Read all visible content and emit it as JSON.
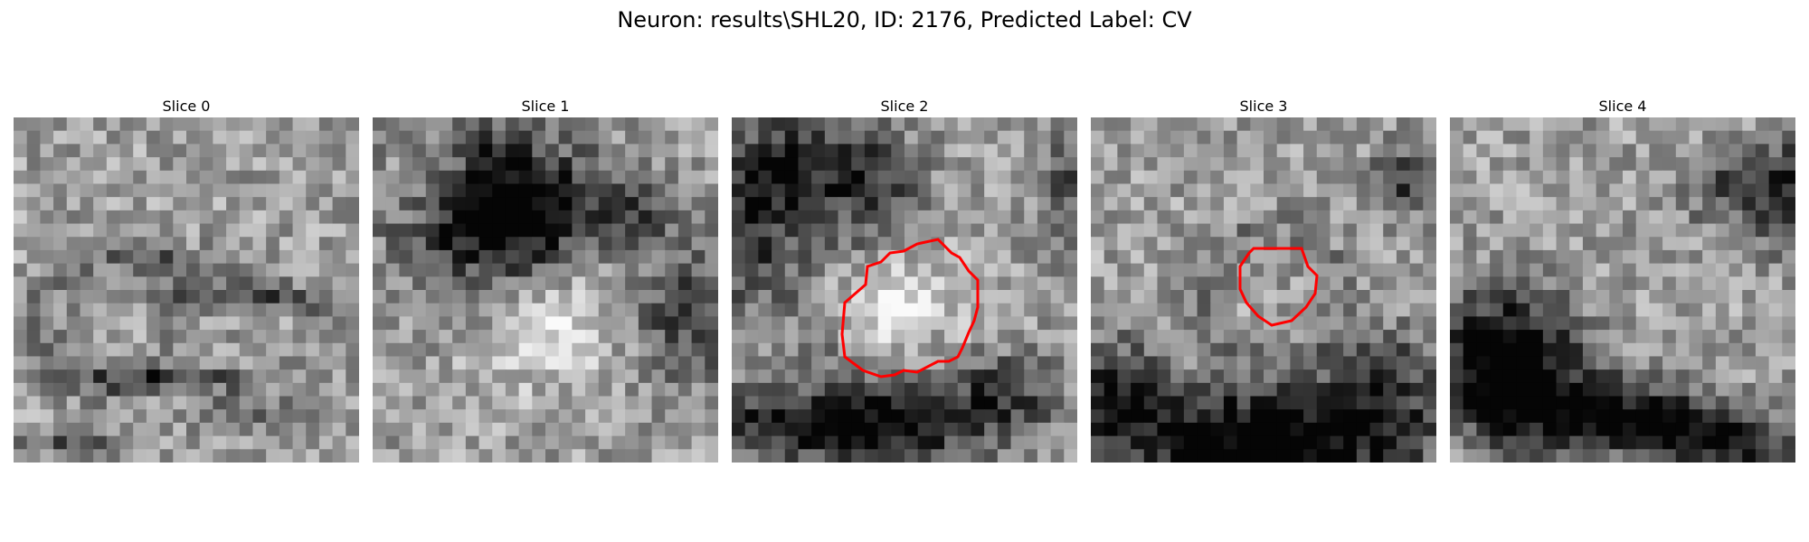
{
  "figure": {
    "title": "Neuron: results\\SHL20, ID: 2176, Predicted Label: CV",
    "contour_color": "#ff0000",
    "colormap": "grayscale",
    "panels": [
      {
        "title": "Slice 0",
        "has_contour": false
      },
      {
        "title": "Slice 1",
        "has_contour": false
      },
      {
        "title": "Slice 2",
        "has_contour": true
      },
      {
        "title": "Slice 3",
        "has_contour": true
      },
      {
        "title": "Slice 4",
        "has_contour": false
      }
    ]
  }
}
